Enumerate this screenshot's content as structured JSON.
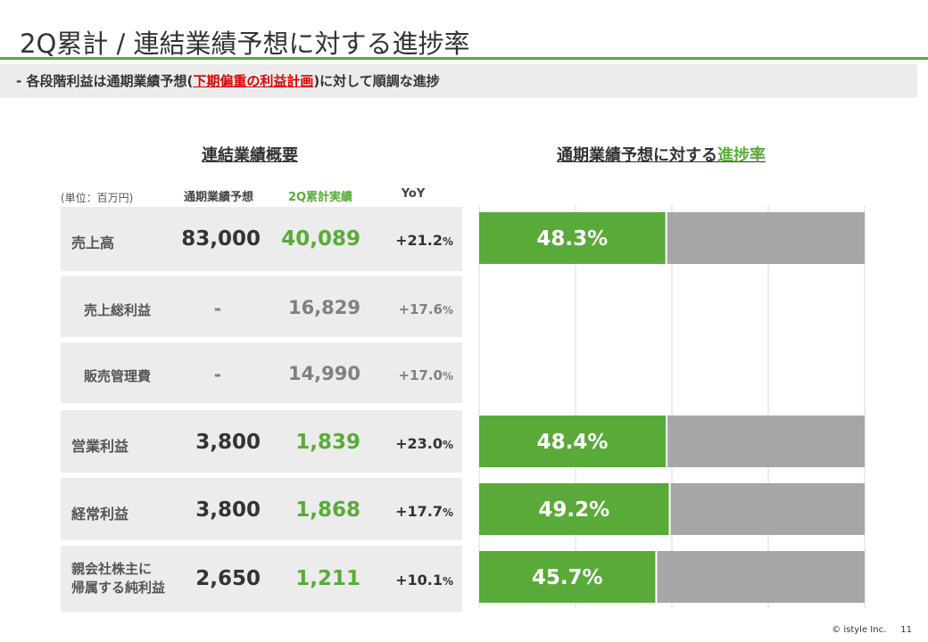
{
  "title": "2Q累計 / 連結業績予想に対する進捗率",
  "subtitle": {
    "prefix": "-  各段階利益は通期業績予想(",
    "highlight": "下期偏重の利益計画",
    "suffix": ")に対して順調な進捗"
  },
  "table": {
    "heading": "連結業績概要",
    "unit": "(単位：百万円)",
    "columns": {
      "forecast": "通期業績予想",
      "actual": "2Q累計実績",
      "yoy": "YoY"
    },
    "rows": [
      {
        "label": "売上高",
        "forecast": "83,000",
        "actual": "40,089",
        "yoy": "+21.2",
        "pct": "%"
      },
      {
        "label": "売上総利益",
        "forecast": "-",
        "actual": "16,829",
        "yoy": "+17.6",
        "pct": "%"
      },
      {
        "label": "販売管理費",
        "forecast": "-",
        "actual": "14,990",
        "yoy": "+17.0",
        "pct": "%"
      },
      {
        "label": "営業利益",
        "forecast": "3,800",
        "actual": "1,839",
        "yoy": "+23.0",
        "pct": "%"
      },
      {
        "label": "経常利益",
        "forecast": "3,800",
        "actual": "1,868",
        "yoy": "+17.7",
        "pct": "%"
      },
      {
        "label_line1": "親会社株主に",
        "label_line2": "帰属する純利益",
        "forecast": "2,650",
        "actual": "1,211",
        "yoy": "+10.1",
        "pct": "%"
      }
    ]
  },
  "chart_heading": {
    "prefix": "通期業績予想に対する",
    "highlight": "進捗率"
  },
  "colors": {
    "accent": "#5aaa3a",
    "remainder": "#a6a6a6",
    "highlight_red": "#e00000"
  },
  "chart_data": {
    "type": "bar",
    "orientation": "horizontal",
    "stacked": true,
    "xlim": [
      0,
      100
    ],
    "grid": true,
    "categories": [
      "売上高",
      "売上総利益",
      "販売管理費",
      "営業利益",
      "経常利益",
      "親会社株主に帰属する純利益"
    ],
    "series": [
      {
        "values": [
          48.3,
          null,
          null,
          48.4,
          49.2,
          45.7
        ]
      },
      {
        "values": [
          51.7,
          null,
          null,
          51.6,
          50.8,
          54.3
        ]
      }
    ],
    "labels": [
      "48.3%",
      "",
      "",
      "48.4%",
      "49.2%",
      "45.7%"
    ]
  },
  "footer": {
    "copyright": "© istyle Inc.",
    "page": "11"
  }
}
